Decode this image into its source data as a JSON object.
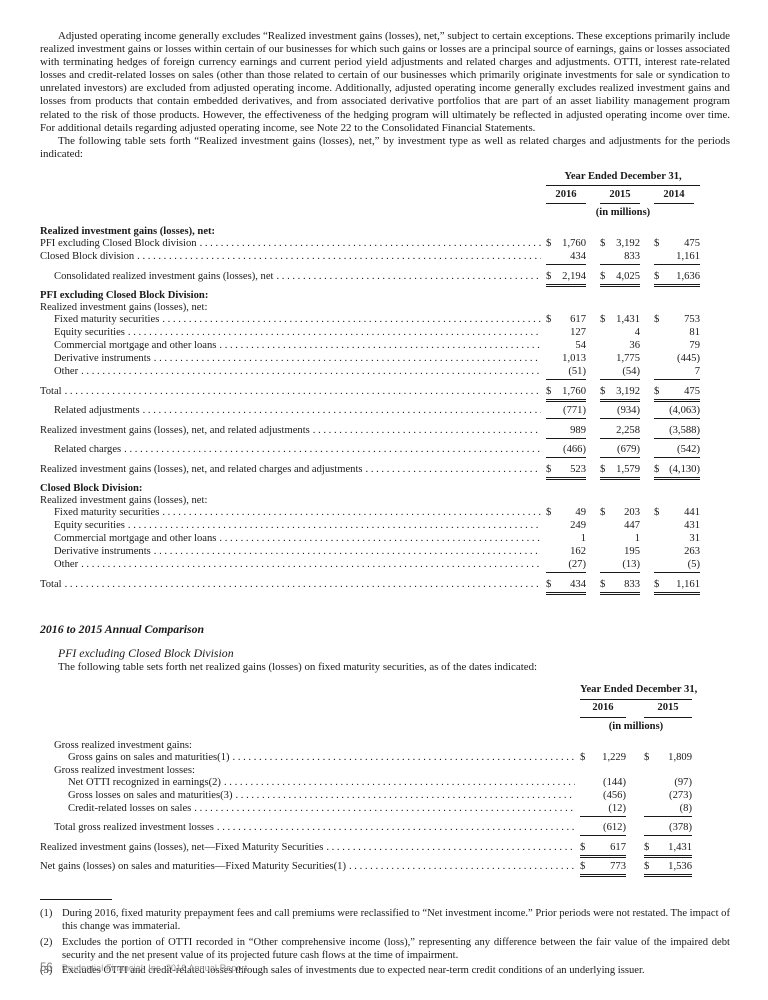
{
  "document": {
    "para1": "Adjusted operating income generally excludes “Realized investment gains (losses), net,” subject to certain exceptions. These exceptions primarily include realized investment gains or losses within certain of our businesses for which such gains or losses are a principal source of earnings, gains or losses associated with terminating hedges of foreign currency earnings and current period yield adjustments and related charges and adjustments. OTTI, interest rate-related losses and credit-related losses on sales (other than those related to certain of our businesses which primarily originate investments for sale or syndication to unrelated investors) are excluded from adjusted operating income. Additionally, adjusted operating income generally excludes realized investment gains and losses from products that contain embedded derivatives, and from associated derivative portfolios that are part of an asset liability management program related to the risk of those products. However, the effectiveness of the hedging program will ultimately be reflected in adjusted operating income over time. For additional details regarding adjusted operating income, see Note 22 to the Consolidated Financial Statements.",
    "para2": "The following table sets forth “Realized investment gains (losses), net,” by investment type as well as related charges and adjustments for the periods indicated:",
    "section": {
      "h1": "2016 to 2015 Annual Comparison",
      "h2": "PFI excluding Closed Block Division",
      "para3": "The following table sets forth net realized gains (losses) on fixed maturity securities, as of the dates indicated:"
    },
    "footnotes": [
      {
        "num": "(1)",
        "text": "During 2016, fixed maturity prepayment fees and call premiums were reclassified to “Net investment income.” Prior periods were not restated. The impact of this change was immaterial."
      },
      {
        "num": "(2)",
        "text": "Excludes the portion of OTTI recorded in “Other comprehensive income (loss),” representing any difference between the fair value of the impaired debt security and the net present value of its projected future cash flows at the time of impairment."
      },
      {
        "num": "(3)",
        "text": "Excludes OTTI and credit-related losses through sales of investments due to expected near-term credit conditions of an underlying issuer."
      }
    ],
    "footer": {
      "page_number": "56",
      "label": "Prudential Financial, Inc. 2016 Annual Report"
    }
  },
  "table1": {
    "header": {
      "span": "Year Ended December 31,",
      "years": [
        "2016",
        "2015",
        "2014"
      ],
      "units": "(in millions)"
    },
    "rows": [
      {
        "label": "Realized investment gains (losses), net:",
        "b": true
      },
      {
        "label": "PFI excluding Closed Block division",
        "v": [
          "$1,760",
          "$3,192",
          "$ 475"
        ]
      },
      {
        "label": "Closed Block division",
        "v": [
          "434",
          "833",
          "1,161"
        ],
        "r": "s"
      },
      {
        "label": "Consolidated realized investment gains (losses), net",
        "i": 1,
        "v": [
          "$2,194",
          "$4,025",
          "$ 1,636"
        ],
        "r": "d",
        "g": true
      },
      {
        "label": "PFI excluding Closed Block Division:",
        "b": true,
        "g": true
      },
      {
        "label": "Realized investment gains (losses), net:"
      },
      {
        "label": "Fixed maturity securities",
        "i": 1,
        "v": [
          "$ 617",
          "$1,431",
          "$ 753"
        ]
      },
      {
        "label": "Equity securities",
        "i": 1,
        "v": [
          "127",
          "4",
          "81"
        ]
      },
      {
        "label": "Commercial mortgage and other loans",
        "i": 1,
        "v": [
          "54",
          "36",
          "79"
        ]
      },
      {
        "label": "Derivative instruments",
        "i": 1,
        "v": [
          "1,013",
          "1,775",
          "(445)"
        ]
      },
      {
        "label": "Other",
        "i": 1,
        "v": [
          "(51)",
          "(54)",
          "7"
        ],
        "r": "s"
      },
      {
        "label": "Total",
        "v": [
          "$1,760",
          "$3,192",
          "$ 475"
        ],
        "r": "d",
        "g": true
      },
      {
        "label": "Related adjustments",
        "i": 1,
        "v": [
          "(771)",
          "(934)",
          "(4,063)"
        ],
        "r": "s",
        "g": true
      },
      {
        "label": "Realized investment gains (losses), net, and related adjustments",
        "v": [
          "989",
          "2,258",
          "(3,588)"
        ],
        "r": "s",
        "g": true
      },
      {
        "label": "Related charges",
        "i": 1,
        "v": [
          "(466)",
          "(679)",
          "(542)"
        ],
        "r": "s",
        "g": true
      },
      {
        "label": "Realized investment gains (losses), net, and related charges and adjustments",
        "v": [
          "$ 523",
          "$1,579",
          "$(4,130)"
        ],
        "r": "d",
        "g": true
      },
      {
        "label": "Closed Block Division:",
        "b": true,
        "g": true
      },
      {
        "label": "Realized investment gains (losses), net:"
      },
      {
        "label": "Fixed maturity securities",
        "i": 1,
        "v": [
          "$ 49",
          "$ 203",
          "$ 441"
        ]
      },
      {
        "label": "Equity securities",
        "i": 1,
        "v": [
          "249",
          "447",
          "431"
        ]
      },
      {
        "label": "Commercial mortgage and other loans",
        "i": 1,
        "v": [
          "1",
          "1",
          "31"
        ]
      },
      {
        "label": "Derivative instruments",
        "i": 1,
        "v": [
          "162",
          "195",
          "263"
        ]
      },
      {
        "label": "Other",
        "i": 1,
        "v": [
          "(27)",
          "(13)",
          "(5)"
        ],
        "r": "s"
      },
      {
        "label": "Total",
        "v": [
          "$ 434",
          "$ 833",
          "$ 1,161"
        ],
        "r": "d",
        "g": true
      }
    ]
  },
  "table2": {
    "header": {
      "span": "Year Ended December 31,",
      "years": [
        "2016",
        "2015"
      ],
      "units": "(in millions)"
    },
    "rows": [
      {
        "label": "Gross realized investment gains:",
        "i": 1
      },
      {
        "label": "Gross gains on sales and maturities(1)",
        "i": 2,
        "v": [
          "$1,229",
          "$1,809"
        ]
      },
      {
        "label": "Gross realized investment losses:",
        "i": 1
      },
      {
        "label": "Net OTTI recognized in earnings(2)",
        "i": 2,
        "v": [
          "(144)",
          "(97)"
        ]
      },
      {
        "label": "Gross losses on sales and maturities(3)",
        "i": 2,
        "v": [
          "(456)",
          "(273)"
        ]
      },
      {
        "label": "Credit-related losses on sales",
        "i": 2,
        "v": [
          "(12)",
          "(8)"
        ],
        "r": "s"
      },
      {
        "label": "Total gross realized investment losses",
        "i": 1,
        "v": [
          "(612)",
          "(378)"
        ],
        "r": "s",
        "g": true
      },
      {
        "label": "Realized investment gains (losses), net—Fixed Maturity Securities",
        "v": [
          "$ 617",
          "$1,431"
        ],
        "r": "d",
        "g": true
      },
      {
        "label": "Net gains (losses) on sales and maturities—Fixed Maturity Securities(1)",
        "v": [
          "$ 773",
          "$1,536"
        ],
        "r": "d",
        "g": true
      }
    ]
  }
}
